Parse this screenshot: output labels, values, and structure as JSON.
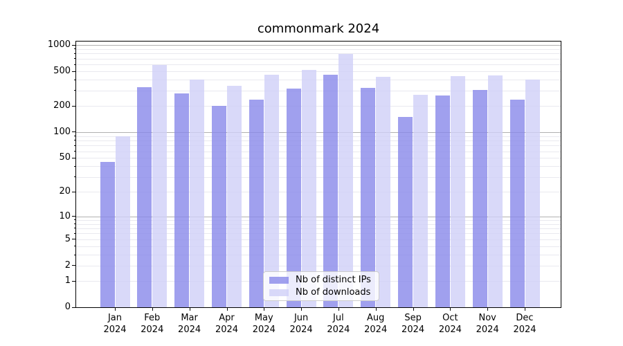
{
  "chart_data": {
    "type": "bar",
    "title": "commonmark 2024",
    "categories": [
      "Jan",
      "Feb",
      "Mar",
      "Apr",
      "May",
      "Jun",
      "Jul",
      "Aug",
      "Sep",
      "Oct",
      "Nov",
      "Dec"
    ],
    "category_year": "2024",
    "series": [
      {
        "name": "Nb of distinct IPs",
        "color": "rgba(136,136,234,0.8)",
        "values": [
          45,
          330,
          280,
          200,
          235,
          315,
          455,
          320,
          150,
          265,
          305,
          235
        ]
      },
      {
        "name": "Nb of downloads",
        "color": "rgba(208,208,247,0.8)",
        "values": [
          90,
          585,
          400,
          340,
          455,
          520,
          790,
          430,
          270,
          440,
          450,
          400
        ]
      }
    ],
    "y_axis": {
      "scale": "log1p",
      "range": [
        0,
        1096
      ],
      "transform_max": 7,
      "ticks": [
        0,
        1,
        2,
        5,
        10,
        20,
        50,
        100,
        200,
        500,
        1000
      ],
      "major_gridlines": [
        10,
        100,
        1000
      ],
      "minor_gridlines": [
        1,
        2,
        3,
        4,
        5,
        6,
        7,
        8,
        9,
        20,
        30,
        40,
        50,
        60,
        70,
        80,
        90,
        200,
        300,
        400,
        500,
        600,
        700,
        800,
        900
      ]
    },
    "legend": {
      "position": "lower-center"
    },
    "grid": true,
    "colors": {
      "major_grid": "#b0b0b0",
      "minor_grid": "#e9e9ef",
      "spine": "#000000"
    }
  }
}
